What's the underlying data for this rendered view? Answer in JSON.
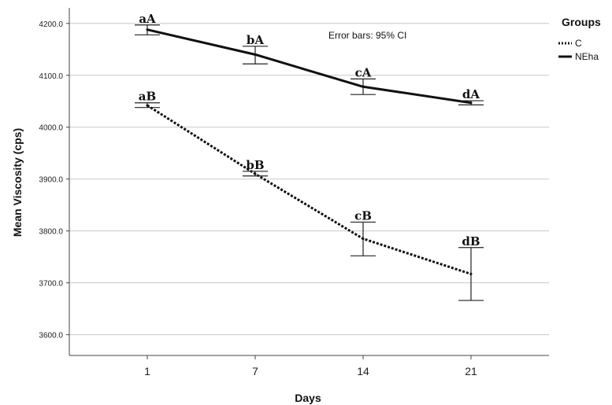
{
  "chart_data": {
    "type": "line",
    "xlabel": "Days",
    "ylabel": "Mean Viscosity (cps)",
    "categories": [
      "1",
      "7",
      "14",
      "21"
    ],
    "ylim": [
      3560,
      4230
    ],
    "yticks": [
      "3600.0",
      "3700.0",
      "3800.0",
      "3900.0",
      "4000.0",
      "4100.0",
      "4200.0"
    ],
    "grid": "horizontal",
    "annotation": "Error bars: 95% CI",
    "legend": {
      "title": "Groups",
      "position": "top-right"
    },
    "series": [
      {
        "name": "C",
        "style": "dotted",
        "values": [
          4042,
          3910,
          3785,
          3717
        ],
        "ci_low": [
          4038,
          3906,
          3752,
          3666
        ],
        "ci_high": [
          4047,
          3915,
          3817,
          3768
        ],
        "labels": [
          "aB",
          "bB",
          "cB",
          "dB"
        ]
      },
      {
        "name": "NEha",
        "style": "solid",
        "values": [
          4188,
          4140,
          4078,
          4047
        ],
        "ci_low": [
          4178,
          4122,
          4063,
          4043
        ],
        "ci_high": [
          4197,
          4156,
          4093,
          4051
        ],
        "labels": [
          "aA",
          "bA",
          "cA",
          "dA"
        ]
      }
    ]
  }
}
